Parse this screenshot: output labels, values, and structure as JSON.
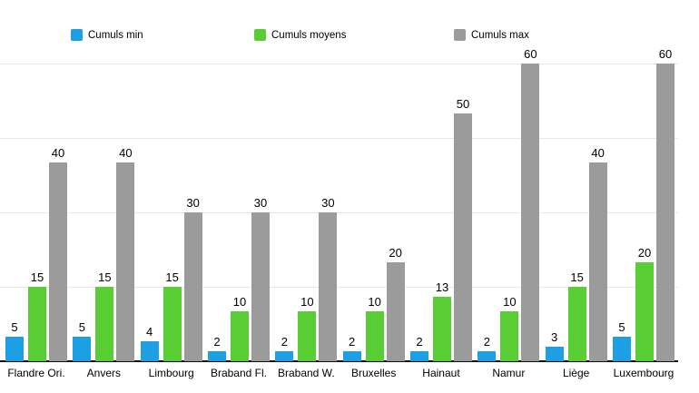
{
  "chart_data": {
    "type": "bar",
    "title": "",
    "xlabel": "",
    "ylabel": "",
    "ylim": [
      0,
      60
    ],
    "gridline_values": [
      15,
      30,
      45,
      60
    ],
    "legend_position": "top",
    "value_labels_shown": true,
    "categories": [
      "Flandre Ori.",
      "Anvers",
      "Limbourg",
      "Braband Fl.",
      "Braband W.",
      "Bruxelles",
      "Hainaut",
      "Namur",
      "Liège",
      "Luxembourg"
    ],
    "series": [
      {
        "name": "Cumuls min",
        "color": "#1c9fe3",
        "values": [
          5,
          5,
          4,
          2,
          2,
          2,
          2,
          2,
          3,
          5
        ]
      },
      {
        "name": "Cumuls moyens",
        "color": "#58ce34",
        "values": [
          15,
          15,
          15,
          10,
          10,
          10,
          13,
          10,
          15,
          20
        ]
      },
      {
        "name": "Cumuls max",
        "color": "#9b9b9b",
        "values": [
          40,
          40,
          30,
          30,
          30,
          20,
          50,
          60,
          40,
          60
        ]
      }
    ],
    "colors": {
      "gridline": "#e8e8e8",
      "axis_line": "#111111",
      "label_text": "#000000",
      "background": "#ffffff"
    }
  }
}
